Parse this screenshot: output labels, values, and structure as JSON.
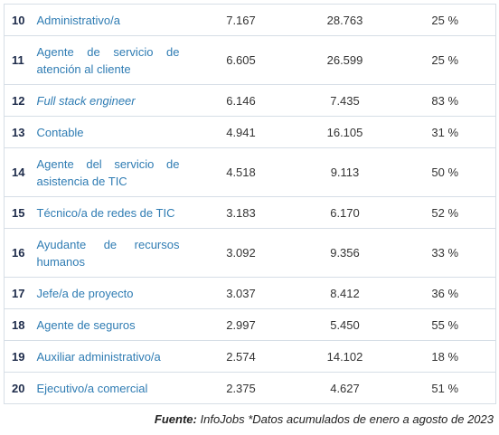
{
  "table": {
    "rows": [
      [
        "10",
        "Administrativo/a",
        "7.167",
        "28.763",
        "25 %"
      ],
      [
        "11",
        "Agente de servicio de atención al cliente",
        "6.605",
        "26.599",
        "25 %"
      ],
      [
        "12",
        "Full stack engineer",
        "6.146",
        "7.435",
        "83 %"
      ],
      [
        "13",
        "Contable",
        "4.941",
        "16.105",
        "31 %"
      ],
      [
        "14",
        "Agente del servicio de asistencia de TIC",
        "4.518",
        "9.113",
        "50 %"
      ],
      [
        "15",
        "Técnico/a de redes de TIC",
        "3.183",
        "6.170",
        "52 %"
      ],
      [
        "16",
        "Ayudante de recursos humanos",
        "3.092",
        "9.356",
        "33 %"
      ],
      [
        "17",
        "Jefe/a de proyecto",
        "3.037",
        "8.412",
        "36 %"
      ],
      [
        "18",
        "Agente de seguros",
        "2.997",
        "5.450",
        "55 %"
      ],
      [
        "19",
        "Auxiliar administrativo/a",
        "2.574",
        "14.102",
        "18 %"
      ],
      [
        "20",
        "Ejecutivo/a comercial",
        "2.375",
        "4.627",
        "51 %"
      ]
    ]
  },
  "footer": {
    "label": "Fuente:",
    "text": "InfoJobs *Datos acumulados de enero a agosto de 2023"
  }
}
